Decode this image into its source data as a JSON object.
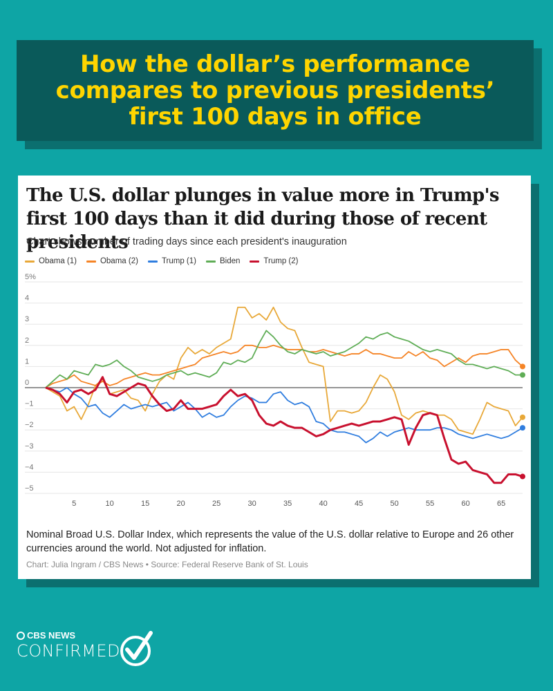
{
  "banner": {
    "title": "How the dollar’s performance compares to previous presidents’ first 100 days in office"
  },
  "card": {
    "title": "The U.S. dollar plunges in value more in Trump's first 100 days than it did during those of recent presidents",
    "subtitle": "Chart shows number of trading days since each president's inauguration",
    "note": "Nominal Broad U.S. Dollar Index, which represents the value of the U.S. dollar relative to Europe and 26 other currencies around the world. Not adjusted for inflation.",
    "credit": "Chart: Julia Ingram / CBS News • Source: Federal Reserve Bank of St. Louis"
  },
  "logo": {
    "top": "CBS NEWS",
    "main": "CONFIRMED"
  },
  "colors": {
    "background": "#0ea5a5",
    "banner": "#0a5a5a",
    "banner_text": "#ffd500"
  },
  "chart_data": {
    "type": "line",
    "title": "The U.S. dollar plunges in value more in Trump's first 100 days than it did during those of recent presidents",
    "xlabel": "",
    "ylabel": "",
    "xlim": [
      1,
      68
    ],
    "ylim": [
      -5,
      5
    ],
    "x_ticks": [
      5,
      10,
      15,
      20,
      25,
      30,
      35,
      40,
      45,
      50,
      55,
      60,
      65
    ],
    "y_ticks": [
      {
        "value": 5,
        "label": "5%"
      },
      {
        "value": 4,
        "label": "4"
      },
      {
        "value": 3,
        "label": "3"
      },
      {
        "value": 2,
        "label": "2"
      },
      {
        "value": 1,
        "label": "1"
      },
      {
        "value": 0,
        "label": "0"
      },
      {
        "value": -1,
        "label": "−1"
      },
      {
        "value": -2,
        "label": "−2"
      },
      {
        "value": -3,
        "label": "−3"
      },
      {
        "value": -4,
        "label": "−4"
      },
      {
        "value": -5,
        "label": "−5"
      }
    ],
    "grid": true,
    "legend_position": "top-left",
    "series": [
      {
        "name": "Obama (1)",
        "color": "#e8a838",
        "values": [
          0,
          -0.2,
          -0.4,
          -1.1,
          -0.9,
          -1.5,
          -0.8,
          0.1,
          0.4,
          -0.3,
          -0.2,
          -0.1,
          -0.5,
          -0.6,
          -1.1,
          -0.3,
          0.3,
          0.6,
          0.4,
          1.4,
          1.9,
          1.6,
          1.8,
          1.6,
          1.9,
          2.1,
          2.3,
          3.8,
          3.8,
          3.3,
          3.5,
          3.2,
          3.8,
          3.1,
          2.8,
          2.7,
          1.9,
          1.2,
          1.1,
          1.0,
          -1.6,
          -1.1,
          -1.1,
          -1.2,
          -1.1,
          -0.7,
          0.0,
          0.6,
          0.4,
          -0.2,
          -1.3,
          -1.5,
          -1.2,
          -1.1,
          -1.2,
          -1.3,
          -1.3,
          -1.5,
          -2.0,
          -2.1,
          -2.2,
          -1.5,
          -0.7,
          -0.9,
          -1.0,
          -1.1,
          -1.8,
          -1.4
        ],
        "end_label": ""
      },
      {
        "name": "Obama (2)",
        "color": "#f58426",
        "values": [
          0,
          0.2,
          0.3,
          0.4,
          0.6,
          0.3,
          0.2,
          0.1,
          0.3,
          0.1,
          0.2,
          0.4,
          0.5,
          0.6,
          0.7,
          0.6,
          0.6,
          0.7,
          0.8,
          0.9,
          1.0,
          1.1,
          1.4,
          1.5,
          1.6,
          1.7,
          1.6,
          1.7,
          2.0,
          2.0,
          1.9,
          1.9,
          2.0,
          1.9,
          1.8,
          1.8,
          1.8,
          1.7,
          1.7,
          1.8,
          1.7,
          1.6,
          1.5,
          1.6,
          1.6,
          1.8,
          1.6,
          1.6,
          1.5,
          1.4,
          1.4,
          1.7,
          1.5,
          1.7,
          1.4,
          1.3,
          1.0,
          1.2,
          1.4,
          1.2,
          1.5,
          1.6,
          1.6,
          1.7,
          1.8,
          1.8,
          1.3,
          1.0
        ],
        "end_label": ""
      },
      {
        "name": "Trump (1)",
        "color": "#2f7ddf",
        "values": [
          0,
          -0.1,
          -0.2,
          0.0,
          -0.3,
          -0.5,
          -0.9,
          -0.8,
          -1.2,
          -1.4,
          -1.1,
          -0.8,
          -1.0,
          -0.9,
          -0.8,
          -0.9,
          -0.8,
          -0.7,
          -1.1,
          -0.9,
          -0.7,
          -1.0,
          -1.4,
          -1.2,
          -1.4,
          -1.3,
          -0.9,
          -0.6,
          -0.4,
          -0.5,
          -0.7,
          -0.7,
          -0.3,
          -0.2,
          -0.6,
          -0.8,
          -0.7,
          -0.9,
          -1.6,
          -1.7,
          -2.0,
          -2.1,
          -2.1,
          -2.2,
          -2.3,
          -2.6,
          -2.4,
          -2.1,
          -2.3,
          -2.1,
          -2.0,
          -1.9,
          -2.0,
          -2.0,
          -2.0,
          -1.9,
          -1.9,
          -2.0,
          -2.2,
          -2.3,
          -2.4,
          -2.3,
          -2.2,
          -2.3,
          -2.4,
          -2.3,
          -2.1,
          -1.9
        ],
        "end_label": ""
      },
      {
        "name": "Biden",
        "color": "#5fad56",
        "values": [
          0,
          0.3,
          0.6,
          0.4,
          0.8,
          0.7,
          0.6,
          1.1,
          1.0,
          1.1,
          1.3,
          1.0,
          0.8,
          0.5,
          0.4,
          0.3,
          0.4,
          0.6,
          0.7,
          0.8,
          0.6,
          0.7,
          0.6,
          0.5,
          0.7,
          1.2,
          1.1,
          1.3,
          1.2,
          1.4,
          2.1,
          2.7,
          2.4,
          2.0,
          1.7,
          1.6,
          1.8,
          1.7,
          1.6,
          1.7,
          1.5,
          1.6,
          1.7,
          1.9,
          2.1,
          2.4,
          2.3,
          2.5,
          2.6,
          2.4,
          2.3,
          2.2,
          2.0,
          1.8,
          1.7,
          1.8,
          1.7,
          1.6,
          1.3,
          1.1,
          1.1,
          1.0,
          0.9,
          1.0,
          0.9,
          0.8,
          0.6,
          0.6
        ],
        "end_label": ""
      },
      {
        "name": "Trump (2)",
        "color": "#c8102e",
        "values": [
          0,
          -0.1,
          -0.3,
          -0.7,
          -0.2,
          -0.1,
          -0.3,
          -0.1,
          0.5,
          -0.3,
          -0.4,
          -0.2,
          0.0,
          0.2,
          0.1,
          -0.4,
          -0.8,
          -1.1,
          -1.0,
          -0.6,
          -1.0,
          -1.0,
          -1.0,
          -0.9,
          -0.8,
          -0.4,
          -0.1,
          -0.4,
          -0.3,
          -0.6,
          -1.3,
          -1.7,
          -1.8,
          -1.6,
          -1.8,
          -1.9,
          -1.9,
          -2.1,
          -2.3,
          -2.2,
          -2.0,
          -1.9,
          -1.8,
          -1.7,
          -1.8,
          -1.7,
          -1.6,
          -1.6,
          -1.5,
          -1.4,
          -1.5,
          -2.7,
          -1.9,
          -1.3,
          -1.2,
          -1.3,
          -2.4,
          -3.4,
          -3.6,
          -3.5,
          -3.9,
          -4.0,
          -4.1,
          -4.5,
          -4.5,
          -4.1,
          -4.1,
          -4.2
        ],
        "end_label": ""
      }
    ]
  }
}
